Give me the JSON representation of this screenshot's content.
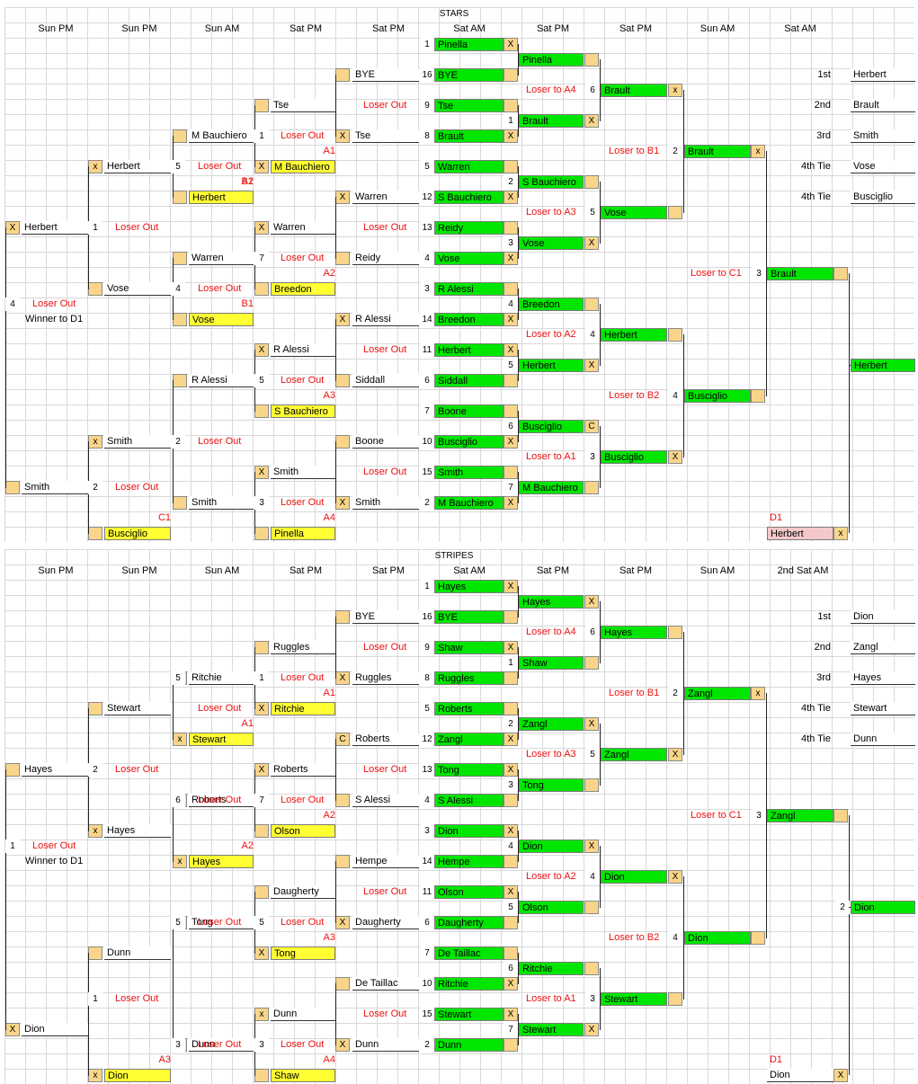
{
  "stars": {
    "title": "STARS",
    "headers": [
      "Sun PM",
      "Sun PM",
      "Sun AM",
      "Sat PM",
      "Sat PM",
      "Sat AM",
      "Sat PM",
      "Sat PM",
      "Sun AM",
      "Sat AM"
    ],
    "standings": {
      "first_label": "1st",
      "first": "Herbert",
      "second_label": "2nd",
      "second": "Brault",
      "third_label": "3rd",
      "third": "Smith",
      "fourth_label_a": "4th Tie",
      "fourth_a": "Vose",
      "fourth_label_b": "4th Tie",
      "fourth_b": "Busciglio"
    },
    "seeds": [
      {
        "seed": "1",
        "name": "Pinella",
        "mark": "X"
      },
      {
        "seed": "16",
        "name": "BYE",
        "mark": ""
      },
      {
        "seed": "9",
        "name": "Tse",
        "mark": ""
      },
      {
        "seed": "8",
        "name": "Brault",
        "mark": "X"
      },
      {
        "seed": "5",
        "name": "Warren",
        "mark": ""
      },
      {
        "seed": "12",
        "name": "S Bauchiero",
        "mark": "X"
      },
      {
        "seed": "13",
        "name": "Reidy",
        "mark": ""
      },
      {
        "seed": "4",
        "name": "Vose",
        "mark": "X"
      },
      {
        "seed": "3",
        "name": "R Alessi",
        "mark": ""
      },
      {
        "seed": "14",
        "name": "Breedon",
        "mark": "X"
      },
      {
        "seed": "11",
        "name": "Herbert",
        "mark": "X"
      },
      {
        "seed": "6",
        "name": "Siddall",
        "mark": ""
      },
      {
        "seed": "7",
        "name": "Boone",
        "mark": ""
      },
      {
        "seed": "10",
        "name": "Busciglio",
        "mark": "X"
      },
      {
        "seed": "15",
        "name": "Smith",
        "mark": ""
      },
      {
        "seed": "2",
        "name": "M Bauchiero",
        "mark": "X"
      }
    ],
    "winners_r1": [
      {
        "name": "Pinella",
        "mark": ""
      },
      {
        "num": "1",
        "name": "Brault",
        "mark": "X"
      },
      {
        "num": "2",
        "name": "S Bauchiero",
        "mark": ""
      },
      {
        "num": "3",
        "name": "Vose",
        "mark": "X"
      },
      {
        "num": "4",
        "name": "Breedon",
        "mark": ""
      },
      {
        "num": "5",
        "name": "Herbert",
        "mark": "X"
      },
      {
        "num": "6",
        "name": "Busciglio",
        "mark": "C"
      },
      {
        "num": "7",
        "name": "M Bauchiero",
        "mark": ""
      }
    ],
    "winners_r2": [
      {
        "num": "6",
        "name": "Brault",
        "mark": "x",
        "loser": "Loser to A4"
      },
      {
        "num": "5",
        "name": "Vose",
        "mark": "",
        "loser": "Loser to A3"
      },
      {
        "num": "4",
        "name": "Herbert",
        "mark": "",
        "loser": "Loser to A2"
      },
      {
        "num": "3",
        "name": "Busciglio",
        "mark": "X",
        "loser": "Loser to A1"
      }
    ],
    "winners_r3": [
      {
        "num": "2",
        "name": "Brault",
        "mark": "x",
        "loser": "Loser to B1"
      },
      {
        "num": "4",
        "name": "Busciglio",
        "mark": "",
        "loser": "Loser to B2"
      }
    ],
    "winners_final": {
      "num": "3",
      "name": "Brault",
      "mark": "",
      "loser": "Loser to C1"
    },
    "champion": "Herbert",
    "cons_r1": [
      {
        "name": "BYE",
        "mark": ""
      },
      {
        "name": "Tse",
        "mark": "X"
      },
      {
        "name": "Warren",
        "mark": "X"
      },
      {
        "name": "Reidy",
        "mark": ""
      },
      {
        "name": "R Alessi",
        "mark": "X"
      },
      {
        "name": "Siddall",
        "mark": ""
      },
      {
        "name": "Boone",
        "mark": ""
      },
      {
        "name": "Smith",
        "mark": "X"
      }
    ],
    "cons_r1_out": [
      "Loser Out",
      "Loser Out",
      "Loser Out",
      "Loser Out"
    ],
    "cons_r2": [
      {
        "name": "Tse",
        "mark": ""
      },
      {
        "num": "1",
        "out": "Loser Out",
        "name": "M Bauchiero",
        "mark": "X",
        "lab": "A1"
      },
      {
        "name": "Warren",
        "mark": "X"
      },
      {
        "num": "7",
        "out": "Loser Out",
        "name": "Breedon",
        "mark": "",
        "lab": "A2"
      },
      {
        "name": "R Alessi",
        "mark": "X"
      },
      {
        "num": "5",
        "out": "Loser Out",
        "name": "S Bauchiero",
        "mark": "",
        "lab": "A3"
      },
      {
        "name": "Smith",
        "mark": "X"
      },
      {
        "num": "3",
        "out": "Loser Out",
        "name": "Pinella",
        "mark": "",
        "lab": "A4"
      }
    ],
    "cons_r2_extra": [
      {
        "num": "2",
        "out": "Loser Out"
      },
      {
        "num": "1",
        "out": "Loser Out"
      }
    ],
    "cons_r3": [
      {
        "name": "M Bauchiero",
        "mark": ""
      },
      {
        "num": "5",
        "out": "Loser Out",
        "name": "Herbert",
        "mark": "x",
        "lab": "B2"
      },
      {
        "name": "Warren",
        "mark": ""
      },
      {
        "num": "4",
        "out": "Loser Out",
        "name": "Vose",
        "mark": "x",
        "lab": "B1"
      },
      {
        "name": "R Alessi",
        "mark": ""
      },
      {
        "num": "2",
        "out": "Loser Out",
        "name": "Smith",
        "mark": "x"
      },
      {
        "name": "Smith",
        "mark": "x"
      },
      {
        "num": "",
        "out": "",
        "name": "Busciglio",
        "mark": "",
        "lab": "C1"
      }
    ],
    "cons_r3_names": {
      "a": "M Bauchiero",
      "a2": "Herbert",
      "b": "Warren",
      "b2": "Vose",
      "c": "R Alessi",
      "d": "Smith",
      "d2": "Busciglio"
    },
    "cons_r4": [
      {
        "name": "Herbert",
        "mark": "x"
      },
      {
        "num": "1",
        "out": "Loser Out"
      },
      {
        "name": "Vose",
        "mark": ""
      },
      {
        "name": "Smith",
        "mark": "x"
      },
      {
        "num": "2",
        "out": "Loser Out"
      }
    ],
    "cons_final": {
      "a": "Herbert",
      "a_mark": "X",
      "b": "Smith",
      "b_mark": "",
      "num": "4",
      "out": "Loser Out",
      "winner": "Winner to D1"
    },
    "d1": {
      "label": "D1",
      "name": "Herbert",
      "mark": "x"
    }
  },
  "stripes": {
    "title": "STRIPES",
    "headers": [
      "Sun PM",
      "Sun PM",
      "Sun AM",
      "Sat PM",
      "Sat PM",
      "Sat AM",
      "Sat PM",
      "Sat PM",
      "Sun AM",
      "2nd Sat AM"
    ],
    "standings": {
      "first_label": "1st",
      "first": "Dion",
      "second_label": "2nd",
      "second": "Zangl",
      "third_label": "3rd",
      "third": "Hayes",
      "fourth_label_a": "4th Tie",
      "fourth_a": "Stewart",
      "fourth_label_b": "4th Tie",
      "fourth_b": "Dunn"
    },
    "seeds": [
      {
        "seed": "1",
        "name": "Hayes",
        "mark": "X"
      },
      {
        "seed": "16",
        "name": "BYE",
        "mark": ""
      },
      {
        "seed": "9",
        "name": "Shaw",
        "mark": "X"
      },
      {
        "seed": "8",
        "name": "Ruggles",
        "mark": ""
      },
      {
        "seed": "5",
        "name": "Roberts",
        "mark": ""
      },
      {
        "seed": "12",
        "name": "Zangl",
        "mark": "X"
      },
      {
        "seed": "13",
        "name": "Tong",
        "mark": "X"
      },
      {
        "seed": "4",
        "name": "S Alessi",
        "mark": ""
      },
      {
        "seed": "3",
        "name": "Dion",
        "mark": "X"
      },
      {
        "seed": "14",
        "name": "Hempe",
        "mark": ""
      },
      {
        "seed": "11",
        "name": "Olson",
        "mark": "X"
      },
      {
        "seed": "6",
        "name": "Daugherty",
        "mark": ""
      },
      {
        "seed": "7",
        "name": "De Taillac",
        "mark": ""
      },
      {
        "seed": "10",
        "name": "Ritchie",
        "mark": "X"
      },
      {
        "seed": "15",
        "name": "Stewart",
        "mark": "X"
      },
      {
        "seed": "2",
        "name": "Dunn",
        "mark": ""
      }
    ],
    "winners_r1": [
      {
        "name": "Hayes",
        "mark": "X"
      },
      {
        "num": "1",
        "name": "Shaw",
        "mark": ""
      },
      {
        "num": "2",
        "name": "Zangl",
        "mark": "X"
      },
      {
        "num": "3",
        "name": "Tong",
        "mark": ""
      },
      {
        "num": "4",
        "name": "Dion",
        "mark": "X"
      },
      {
        "num": "5",
        "name": "Olson",
        "mark": ""
      },
      {
        "num": "6",
        "name": "Ritchie",
        "mark": ""
      },
      {
        "num": "7",
        "name": "Stewart",
        "mark": "X"
      }
    ],
    "winners_r2": [
      {
        "num": "6",
        "name": "Hayes",
        "mark": "",
        "loser": "Loser to A4"
      },
      {
        "num": "5",
        "name": "Zangl",
        "mark": "X",
        "loser": "Loser to A3"
      },
      {
        "num": "4",
        "name": "Dion",
        "mark": "X",
        "loser": "Loser to A2"
      },
      {
        "num": "3",
        "name": "Stewart",
        "mark": "",
        "loser": "Loser to A1"
      }
    ],
    "winners_r3": [
      {
        "num": "2",
        "name": "Zangl",
        "mark": "x",
        "loser": "Loser to B1"
      },
      {
        "num": "4",
        "name": "Dion",
        "mark": "",
        "loser": "Loser to B2"
      }
    ],
    "winners_final": {
      "num": "3",
      "name": "Zangl",
      "mark": "",
      "loser": "Loser to C1"
    },
    "champion_num": "2",
    "champion": "Dion",
    "cons_r1": [
      {
        "name": "BYE",
        "mark": ""
      },
      {
        "name": "Ruggles",
        "mark": "X"
      },
      {
        "name": "Roberts",
        "mark": "C"
      },
      {
        "name": "S Alessi",
        "mark": ""
      },
      {
        "name": "Hempe",
        "mark": ""
      },
      {
        "name": "Daugherty",
        "mark": "X"
      },
      {
        "name": "De Taillac",
        "mark": ""
      },
      {
        "name": "Dunn",
        "mark": "X"
      }
    ],
    "cons_r1_out": [
      "Loser Out",
      "Loser Out",
      "Loser Out",
      "Loser Out"
    ],
    "cons_r2": [
      {
        "name": "Ruggles",
        "mark": ""
      },
      {
        "num": "1",
        "out": "Loser Out",
        "name": "Ritchie",
        "mark": "X",
        "lab": "A1"
      },
      {
        "name": "Roberts",
        "mark": "X"
      },
      {
        "num": "7",
        "out": "Loser Out",
        "name": "Olson",
        "mark": "",
        "lab": "A2"
      },
      {
        "name": "Daugherty",
        "mark": ""
      },
      {
        "num": "5",
        "out": "Loser Out",
        "name": "Tong",
        "mark": "X",
        "lab": "A3"
      },
      {
        "name": "Dunn",
        "mark": "x"
      },
      {
        "num": "3",
        "out": "Loser Out",
        "name": "Shaw",
        "mark": "",
        "lab": "A4"
      }
    ],
    "cons_r2_extra": [
      {
        "num": "2",
        "out": "Loser Out"
      },
      {
        "num": "1",
        "out": "Loser Out"
      }
    ],
    "cons_r3_names": {
      "a": "Ritchie",
      "a2": "Stewart",
      "b": "Roberts",
      "b2": "Hayes",
      "c": "Tong",
      "d": "Dunn",
      "d2": "Dion"
    },
    "cons_r3_marks": {
      "a": "",
      "a2": "x",
      "b": "",
      "b2": "x",
      "c": "",
      "d": "x",
      "d2": "x"
    },
    "cons_r3_nums": {
      "a": "5",
      "b": "6",
      "b_out": "Loser Out",
      "c": "5",
      "d": "3"
    },
    "cons_r4": {
      "a": "Stewart",
      "a_mark": "",
      "b": "Hayes",
      "b_mark": "x",
      "c": "Dunn",
      "c_mark": "",
      "d": "Dion",
      "d_mark": "x"
    },
    "cons_final": {
      "a": "Hayes",
      "a_mark": "",
      "b": "Dion",
      "b_mark": "X",
      "num": "1",
      "out": "Loser Out",
      "winner": "Winner to D1"
    },
    "d1": {
      "label": "D1",
      "name": "Dion",
      "mark": "X"
    }
  },
  "common": {
    "loser_out": "Loser Out"
  }
}
